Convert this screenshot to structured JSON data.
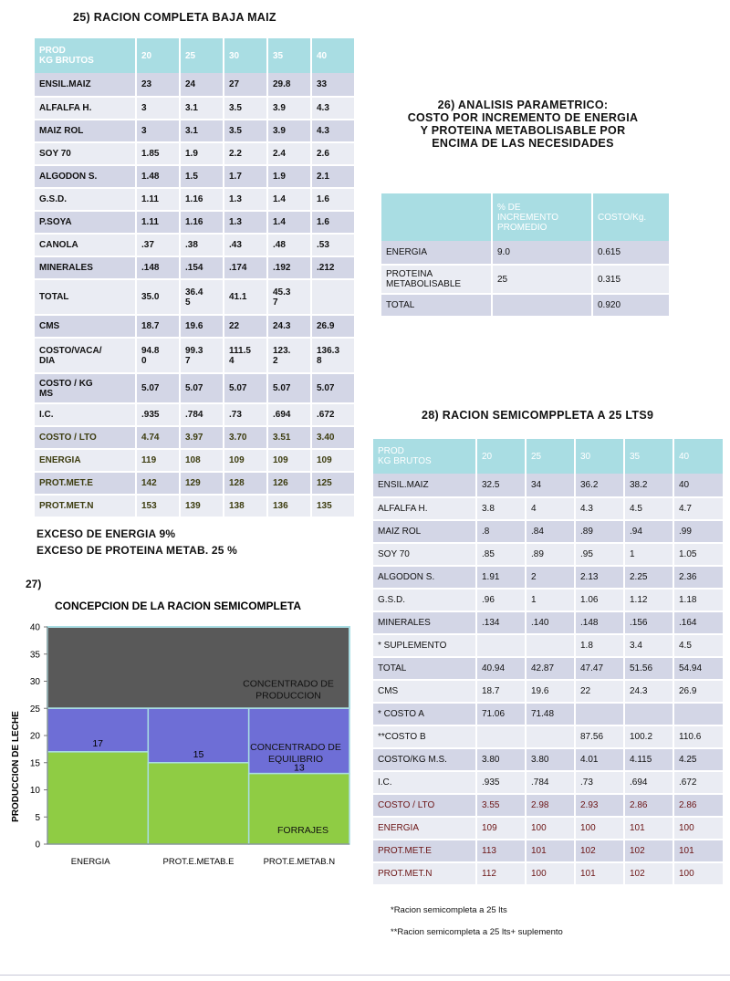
{
  "section25": {
    "title": "25) RACION COMPLETA BAJA MAIZ",
    "header": [
      "PROD\nKG BRUTOS",
      "20",
      "25",
      "30",
      "35",
      "40"
    ],
    "rows": [
      [
        "ENSIL.MAIZ",
        "23",
        "24",
        "27",
        "29.8",
        "33"
      ],
      [
        "ALFALFA H.",
        "3",
        "3.1",
        "3.5",
        "3.9",
        "4.3"
      ],
      [
        "MAIZ ROL",
        "3",
        "3.1",
        "3.5",
        "3.9",
        "4.3"
      ],
      [
        "SOY 70",
        "1.85",
        "1.9",
        "2.2",
        "2.4",
        "2.6"
      ],
      [
        "ALGODON S.",
        "1.48",
        "1.5",
        "1.7",
        "1.9",
        "2.1"
      ],
      [
        "G.S.D.",
        "1.11",
        "1.16",
        "1.3",
        "1.4",
        "1.6"
      ],
      [
        "P.SOYA",
        "1.11",
        "1.16",
        "1.3",
        "1.4",
        "1.6"
      ],
      [
        "CANOLA",
        ".37",
        ".38",
        ".43",
        ".48",
        ".53"
      ],
      [
        "MINERALES",
        ".148",
        ".154",
        ".174",
        ".192",
        ".212"
      ],
      [
        "TOTAL",
        "35.0",
        "36.4\n5",
        "41.1",
        "45.3\n7",
        ""
      ],
      [
        "CMS",
        "18.7",
        "19.6",
        "22",
        "24.3",
        "26.9"
      ],
      [
        "COSTO/VACA/\nDIA",
        "94.8\n0",
        "99.3\n7",
        "111.5\n4",
        "123.\n2",
        "136.3\n8"
      ],
      [
        "COSTO / KG\nMS",
        "5.07",
        "5.07",
        "5.07",
        "5.07",
        "5.07"
      ],
      [
        "I.C.",
        ".935",
        ".784",
        ".73",
        ".694",
        ".672"
      ],
      [
        "COSTO / LTO",
        "4.74",
        "3.97",
        "3.70",
        "3.51",
        "3.40"
      ],
      [
        "ENERGIA",
        "119",
        "108",
        "109",
        "109",
        "109"
      ],
      [
        "PROT.MET.E",
        "142",
        "129",
        "128",
        "126",
        "125"
      ],
      [
        "PROT.MET.N",
        "153",
        "139",
        "138",
        "136",
        "135"
      ]
    ],
    "excess_energy": "EXCESO  DE ENERGIA 9%",
    "excess_protein": "EXCESO DE PROTEINA METAB. 25 %"
  },
  "section26": {
    "title_lines": [
      "26) ANALISIS PARAMETRICO:",
      "COSTO POR INCREMENTO DE ENERGIA",
      "Y PROTEINA  METABOLISABLE POR",
      "ENCIMA DE LAS NECESIDADES"
    ],
    "header": [
      "",
      "% DE\nINCREMENTO\nPROMEDIO",
      "COSTO/Kg."
    ],
    "rows": [
      [
        "ENERGIA",
        "9.0",
        "0.615"
      ],
      [
        "PROTEINA\nMETABOLISABLE",
        "25",
        "0.315"
      ],
      [
        "TOTAL",
        "",
        "0.920"
      ]
    ]
  },
  "section27": {
    "label": "27)",
    "chart_data": {
      "type": "area",
      "title": "CONCEPCION DE LA RACION SEMICOMPLETA",
      "ylabel": "PRODUCCION DE LECHE",
      "ylim": [
        0,
        40
      ],
      "yticks": [
        "0",
        "5",
        "10",
        "15",
        "20",
        "25",
        "30",
        "35",
        "40"
      ],
      "categories": [
        "ENERGIA",
        "PROT.E.METAB.E",
        "PROT.E.METAB.N"
      ],
      "series": [
        {
          "name": "FORRAJES",
          "values": [
            17,
            15,
            13
          ],
          "color": "#8fcc44"
        },
        {
          "name": "CONCENTRADO DE EQUILIBRIO",
          "values": [
            25,
            25,
            25
          ],
          "color": "#6e6ed6"
        },
        {
          "name": "CONCENTRADO DE PRODUCCION",
          "values": [
            40,
            40,
            40
          ],
          "color": "#595959"
        }
      ],
      "data_labels": [
        "17",
        "15",
        "13"
      ]
    }
  },
  "section28": {
    "title": "28) RACION  SEMICOMPPLETA A 25 LTS9",
    "header": [
      "PROD\nKG BRUTOS",
      "20",
      "25",
      "30",
      "35",
      "40"
    ],
    "rows": [
      [
        "ENSIL.MAIZ",
        "32.5",
        "34",
        "36.2",
        "38.2",
        "40"
      ],
      [
        "ALFALFA  H.",
        "3.8",
        "4",
        "4.3",
        "4.5",
        "4.7"
      ],
      [
        "MAIZ ROL",
        ".8",
        ".84",
        ".89",
        ".94",
        ".99"
      ],
      [
        "SOY 70",
        ".85",
        ".89",
        ".95",
        "1",
        "1.05"
      ],
      [
        "ALGODON  S.",
        "1.91",
        "2",
        "2.13",
        "2.25",
        "2.36"
      ],
      [
        "G.S.D.",
        ".96",
        "1",
        "1.06",
        "1.12",
        "1.18"
      ],
      [
        "MINERALES",
        ".134",
        ".140",
        ".148",
        ".156",
        ".164"
      ],
      [
        "* SUPLEMENTO",
        "",
        "",
        "1.8",
        "3.4",
        "4.5"
      ],
      [
        "TOTAL",
        "40.94",
        "42.87",
        "47.47",
        "51.56",
        "54.94"
      ],
      [
        "CMS",
        "18.7",
        "19.6",
        "22",
        "24.3",
        "26.9"
      ],
      [
        "*    COSTO A",
        "71.06",
        "71.48",
        "",
        "",
        ""
      ],
      [
        "**COSTO B",
        "",
        "",
        "87.56",
        "100.2",
        "110.6"
      ],
      [
        "COSTO/KG  M.S.",
        "3.80",
        "3.80",
        "4.01",
        "4.115",
        "4.25"
      ],
      [
        "I.C.",
        ".935",
        ".784",
        ".73",
        ".694",
        ".672"
      ],
      [
        "COSTO / LTO",
        "3.55",
        "2.98",
        "2.93",
        "2.86",
        "2.86"
      ],
      [
        "ENERGIA",
        "109",
        "100",
        "100",
        "101",
        "100"
      ],
      [
        "PROT.MET.E",
        "113",
        "101",
        "102",
        "102",
        "101"
      ],
      [
        "PROT.MET.N",
        "112",
        "100",
        "101",
        "102",
        "100"
      ]
    ],
    "note1": "*Racion  semicompleta    a  25  lts",
    "note2": "**Racion   semicompleta   a  25  lts+  suplemento"
  }
}
